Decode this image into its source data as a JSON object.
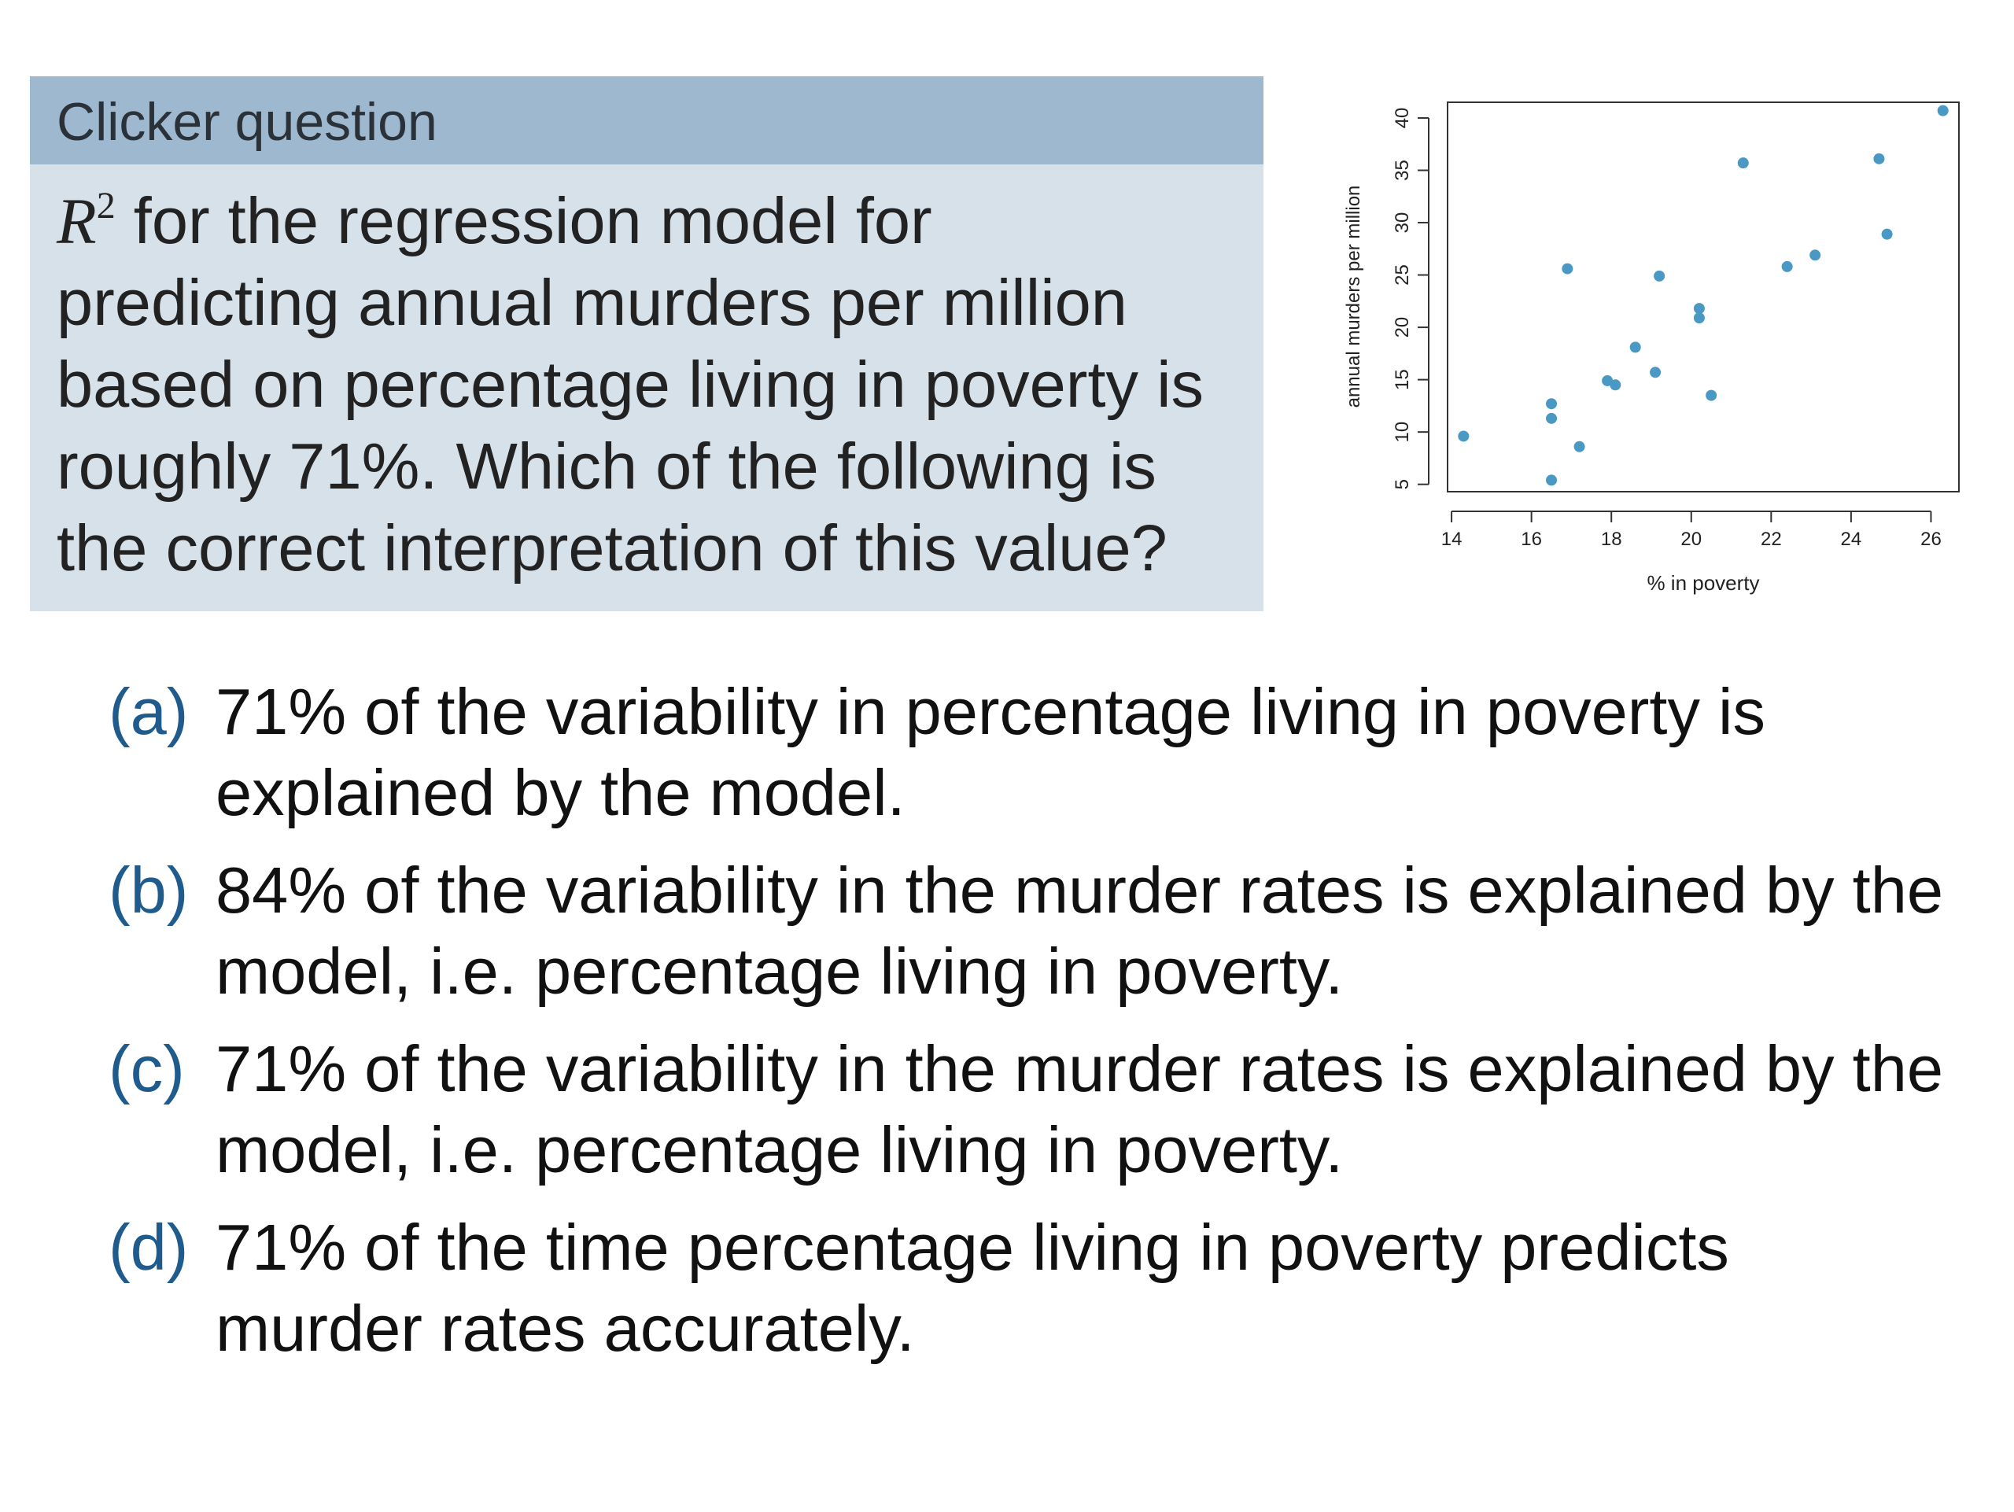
{
  "clicker": {
    "title": "Clicker question",
    "r_symbol": "R",
    "r_exponent": "2",
    "question_lines": [
      " for the regression model for",
      "predicting annual murders per million",
      "based on percentage living in poverty is",
      "roughly 71%. Which of the following is",
      "the correct interpretation of this value?"
    ]
  },
  "options": [
    {
      "label": "(a)",
      "lines": [
        "71% of the variability in percentage living in poverty is",
        "explained by the model."
      ]
    },
    {
      "label": "(b)",
      "lines": [
        "84% of the variability in the murder rates is explained by the",
        "model, i.e. percentage living in poverty."
      ]
    },
    {
      "label": "(c)",
      "lines": [
        "71% of the variability in the murder rates is explained by the",
        "model, i.e. percentage living in poverty."
      ]
    },
    {
      "label": "(d)",
      "lines": [
        "71% of the time percentage living in poverty predicts",
        "murder rates accurately."
      ]
    }
  ],
  "colors": {
    "header_bg": "#9eb9cf",
    "box_bg": "#d6e1ea",
    "option_label": "#1f5b8c",
    "point": "#4a98c4"
  },
  "chart_data": {
    "type": "scatter",
    "title": "",
    "xlabel": "% in poverty",
    "ylabel": "annual murders per million",
    "xlim": [
      13.9,
      26.7
    ],
    "ylim": [
      4.3,
      41.5
    ],
    "x_ticks": [
      "14",
      "16",
      "18",
      "20",
      "22",
      "24",
      "26"
    ],
    "y_ticks": [
      "5",
      "10",
      "15",
      "20",
      "25",
      "30",
      "35",
      "40"
    ],
    "grid": false,
    "legend": "none",
    "series": [
      {
        "points": [
          {
            "x": 14.3,
            "y": 9.6
          },
          {
            "x": 16.5,
            "y": 5.4
          },
          {
            "x": 16.5,
            "y": 11.3
          },
          {
            "x": 16.5,
            "y": 12.7
          },
          {
            "x": 16.9,
            "y": 25.6
          },
          {
            "x": 17.2,
            "y": 8.6
          },
          {
            "x": 17.9,
            "y": 14.9
          },
          {
            "x": 18.1,
            "y": 14.5
          },
          {
            "x": 18.6,
            "y": 18.1
          },
          {
            "x": 19.1,
            "y": 15.7
          },
          {
            "x": 19.2,
            "y": 24.9
          },
          {
            "x": 20.2,
            "y": 21.8
          },
          {
            "x": 20.2,
            "y": 20.9
          },
          {
            "x": 20.5,
            "y": 13.5
          },
          {
            "x": 21.3,
            "y": 35.7
          },
          {
            "x": 22.4,
            "y": 25.8
          },
          {
            "x": 23.1,
            "y": 26.9
          },
          {
            "x": 24.7,
            "y": 36.1
          },
          {
            "x": 24.9,
            "y": 28.9
          },
          {
            "x": 26.3,
            "y": 40.7
          }
        ]
      }
    ]
  }
}
